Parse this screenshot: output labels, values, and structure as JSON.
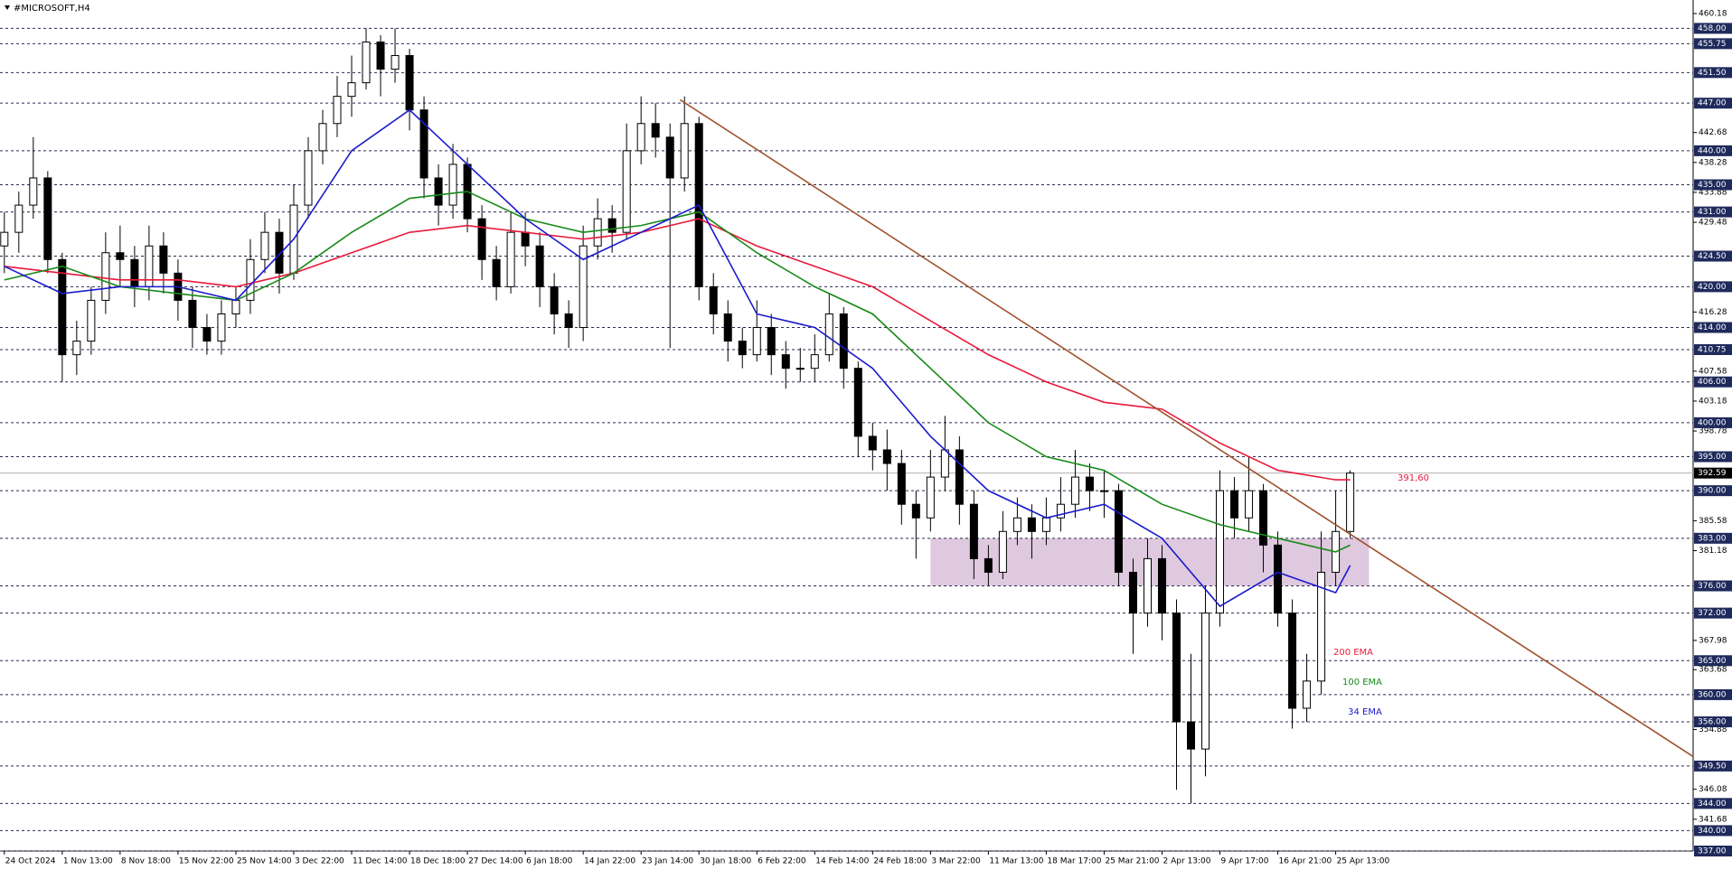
{
  "chart_data": {
    "type": "candlestick",
    "title": "#MICROSOFT,H4",
    "categories": [
      "24 Oct 2024",
      null,
      null,
      null,
      "1 Nov 13:00",
      null,
      null,
      null,
      "8 Nov 18:00",
      null,
      null,
      null,
      "15 Nov 22:00",
      null,
      null,
      null,
      "25 Nov 14:00",
      null,
      null,
      null,
      "3 Dec 22:00",
      null,
      null,
      null,
      "11 Dec 14:00",
      null,
      null,
      null,
      "18 Dec 18:00",
      null,
      null,
      null,
      "27 Dec 14:00",
      null,
      null,
      null,
      "6 Jan 18:00",
      null,
      null,
      null,
      "14 Jan 22:00",
      null,
      null,
      null,
      "23 Jan 14:00",
      null,
      null,
      null,
      "30 Jan 18:00",
      null,
      null,
      null,
      "6 Feb 22:00",
      null,
      null,
      null,
      "14 Feb 14:00",
      null,
      null,
      null,
      "24 Feb 18:00",
      null,
      null,
      null,
      "3 Mar 22:00",
      null,
      null,
      null,
      "11 Mar 13:00",
      null,
      null,
      null,
      "18 Mar 17:00",
      null,
      null,
      null,
      "25 Mar 21:00",
      null,
      null,
      null,
      "2 Apr 13:00",
      null,
      null,
      null,
      "9 Apr 17:00",
      null,
      null,
      null,
      "16 Apr 21:00",
      null,
      null,
      null,
      "25 Apr 13:00",
      null
    ],
    "candles": {
      "open": [
        426,
        428,
        432,
        436,
        424,
        410,
        412,
        418,
        425,
        424,
        420,
        426,
        422,
        418,
        414,
        412,
        416,
        418,
        424,
        428,
        422,
        432,
        440,
        444,
        448,
        450,
        456,
        452,
        454,
        446,
        436,
        432,
        438,
        430,
        424,
        420,
        428,
        426,
        420,
        416,
        414,
        426,
        430,
        428,
        440,
        444,
        442,
        436,
        444,
        420,
        416,
        412,
        410,
        414,
        410,
        408,
        408,
        410,
        416,
        408,
        398,
        396,
        394,
        388,
        386,
        392,
        396,
        388,
        380,
        378,
        384,
        386,
        384,
        386,
        388,
        392,
        390,
        390,
        378,
        372,
        380,
        372,
        356,
        352,
        372,
        390,
        386,
        390,
        382,
        372,
        358,
        362,
        378,
        384
      ],
      "high": [
        431,
        434,
        442,
        437,
        425,
        415,
        420,
        428,
        429,
        426,
        429,
        428,
        424,
        420,
        416,
        418,
        420,
        427,
        431,
        430,
        435,
        442,
        446,
        451,
        454,
        458,
        457,
        458,
        455,
        448,
        438,
        441,
        439,
        432,
        426,
        431,
        431,
        428,
        422,
        418,
        429,
        433,
        432,
        444,
        448,
        447,
        444,
        448,
        445,
        422,
        418,
        414,
        418,
        416,
        412,
        411,
        413,
        419,
        417,
        409,
        400,
        399,
        396,
        390,
        396,
        401,
        398,
        390,
        382,
        387,
        389,
        388,
        389,
        392,
        396,
        394,
        393,
        391,
        380,
        383,
        382,
        374,
        366,
        376,
        393,
        392,
        395,
        391,
        384,
        374,
        366,
        384,
        390,
        393
      ],
      "low": [
        422,
        425,
        430,
        422,
        406,
        407,
        410,
        416,
        420,
        417,
        418,
        419,
        415,
        411,
        410,
        410,
        414,
        416,
        422,
        419,
        421,
        430,
        438,
        442,
        445,
        449,
        448,
        450,
        443,
        433,
        429,
        430,
        428,
        421,
        418,
        419,
        423,
        417,
        413,
        411,
        412,
        424,
        425,
        427,
        438,
        439,
        411,
        434,
        418,
        413,
        409,
        408,
        409,
        407,
        405,
        406,
        406,
        409,
        405,
        395,
        393,
        390,
        385,
        380,
        384,
        390,
        385,
        377,
        376,
        377,
        382,
        380,
        382,
        384,
        386,
        387,
        386,
        376,
        366,
        370,
        368,
        346,
        344,
        348,
        370,
        383,
        384,
        378,
        370,
        355,
        356,
        360,
        376,
        383
      ],
      "close": [
        428,
        432,
        436,
        424,
        410,
        412,
        418,
        425,
        424,
        420,
        426,
        422,
        418,
        414,
        412,
        416,
        418,
        424,
        428,
        422,
        432,
        440,
        444,
        448,
        450,
        456,
        452,
        454,
        446,
        436,
        432,
        438,
        430,
        424,
        420,
        428,
        426,
        420,
        416,
        414,
        426,
        430,
        428,
        440,
        444,
        442,
        436,
        444,
        420,
        416,
        412,
        410,
        414,
        410,
        408,
        408,
        410,
        416,
        408,
        398,
        396,
        394,
        388,
        386,
        392,
        396,
        388,
        380,
        378,
        384,
        386,
        384,
        386,
        388,
        392,
        390,
        390,
        378,
        372,
        380,
        372,
        356,
        352,
        372,
        390,
        386,
        390,
        382,
        372,
        358,
        362,
        378,
        384,
        392.59
      ]
    },
    "x": [
      0,
      4,
      8,
      12,
      16,
      20,
      24,
      28,
      32,
      36,
      40,
      44,
      48,
      52,
      56,
      60,
      64,
      68,
      72,
      76,
      80,
      84,
      88,
      92,
      93
    ],
    "series": [
      {
        "name": "200 EMA",
        "color": "#e8193c",
        "values": [
          423,
          422,
          421,
          421,
          420,
          422,
          425,
          428,
          429,
          428,
          427,
          428,
          430,
          426,
          423,
          420,
          415,
          410,
          406,
          403,
          402,
          397,
          393,
          391.6,
          391.6
        ]
      },
      {
        "name": "100 EMA",
        "color": "#178a17",
        "values": [
          421,
          423,
          420,
          419,
          418,
          422,
          428,
          433,
          434,
          430,
          428,
          429,
          431,
          425,
          420,
          416,
          408,
          400,
          395,
          393,
          388,
          385,
          383,
          381,
          382
        ]
      },
      {
        "name": "34 EMA",
        "color": "#1a1acc",
        "values": [
          423,
          419,
          420,
          420,
          418,
          427,
          440,
          446,
          438,
          430,
          424,
          428,
          432,
          416,
          414,
          408,
          398,
          390,
          386,
          388,
          383,
          373,
          378,
          375,
          379
        ]
      }
    ],
    "trendline": {
      "color": "#a0522d",
      "x": [
        46.7,
        116.7
      ],
      "values": [
        447.5,
        350.9
      ]
    },
    "zone": {
      "color": "#d8bfd8",
      "x": [
        64,
        94.3
      ],
      "range": [
        376,
        383
      ]
    },
    "annotation": "391,60",
    "current_price": 392.59,
    "ylim": [
      337,
      460.18
    ],
    "xlim": [
      -0.3,
      116.7
    ],
    "yticks": [
      460.18,
      442.68,
      438.28,
      433.88,
      429.48,
      416.28,
      407.58,
      403.18,
      398.78,
      385.58,
      381.18,
      367.98,
      363.68,
      354.88,
      346.08,
      341.68
    ],
    "levels": [
      {
        "value": 458,
        "label": "458.00"
      },
      {
        "value": 455.75,
        "label": "455.75"
      },
      {
        "value": 451.5,
        "label": "451.50"
      },
      {
        "value": 447,
        "label": "447.00"
      },
      {
        "value": 440,
        "label": "440.00"
      },
      {
        "value": 435,
        "label": "435.00"
      },
      {
        "value": 431,
        "label": "431.00"
      },
      {
        "value": 424.5,
        "label": "424.50"
      },
      {
        "value": 420,
        "label": "420.00"
      },
      {
        "value": 414,
        "label": "414.00"
      },
      {
        "value": 410.75,
        "label": "410.75"
      },
      {
        "value": 406,
        "label": "406.00"
      },
      {
        "value": 400,
        "label": "400.00"
      },
      {
        "value": 395,
        "label": "395.00"
      },
      {
        "value": 390,
        "label": "390.00"
      },
      {
        "value": 383,
        "label": "383.00"
      },
      {
        "value": 376,
        "label": "376.00"
      },
      {
        "value": 372,
        "label": "372.00"
      },
      {
        "value": 365,
        "label": "365.00"
      },
      {
        "value": 360,
        "label": "360.00"
      },
      {
        "value": 356,
        "label": "356.00"
      },
      {
        "value": 349.5,
        "label": "349.50"
      },
      {
        "value": 344,
        "label": "344.00"
      },
      {
        "value": 340,
        "label": "340.00"
      },
      {
        "value": 337,
        "label": "337.00"
      }
    ]
  }
}
